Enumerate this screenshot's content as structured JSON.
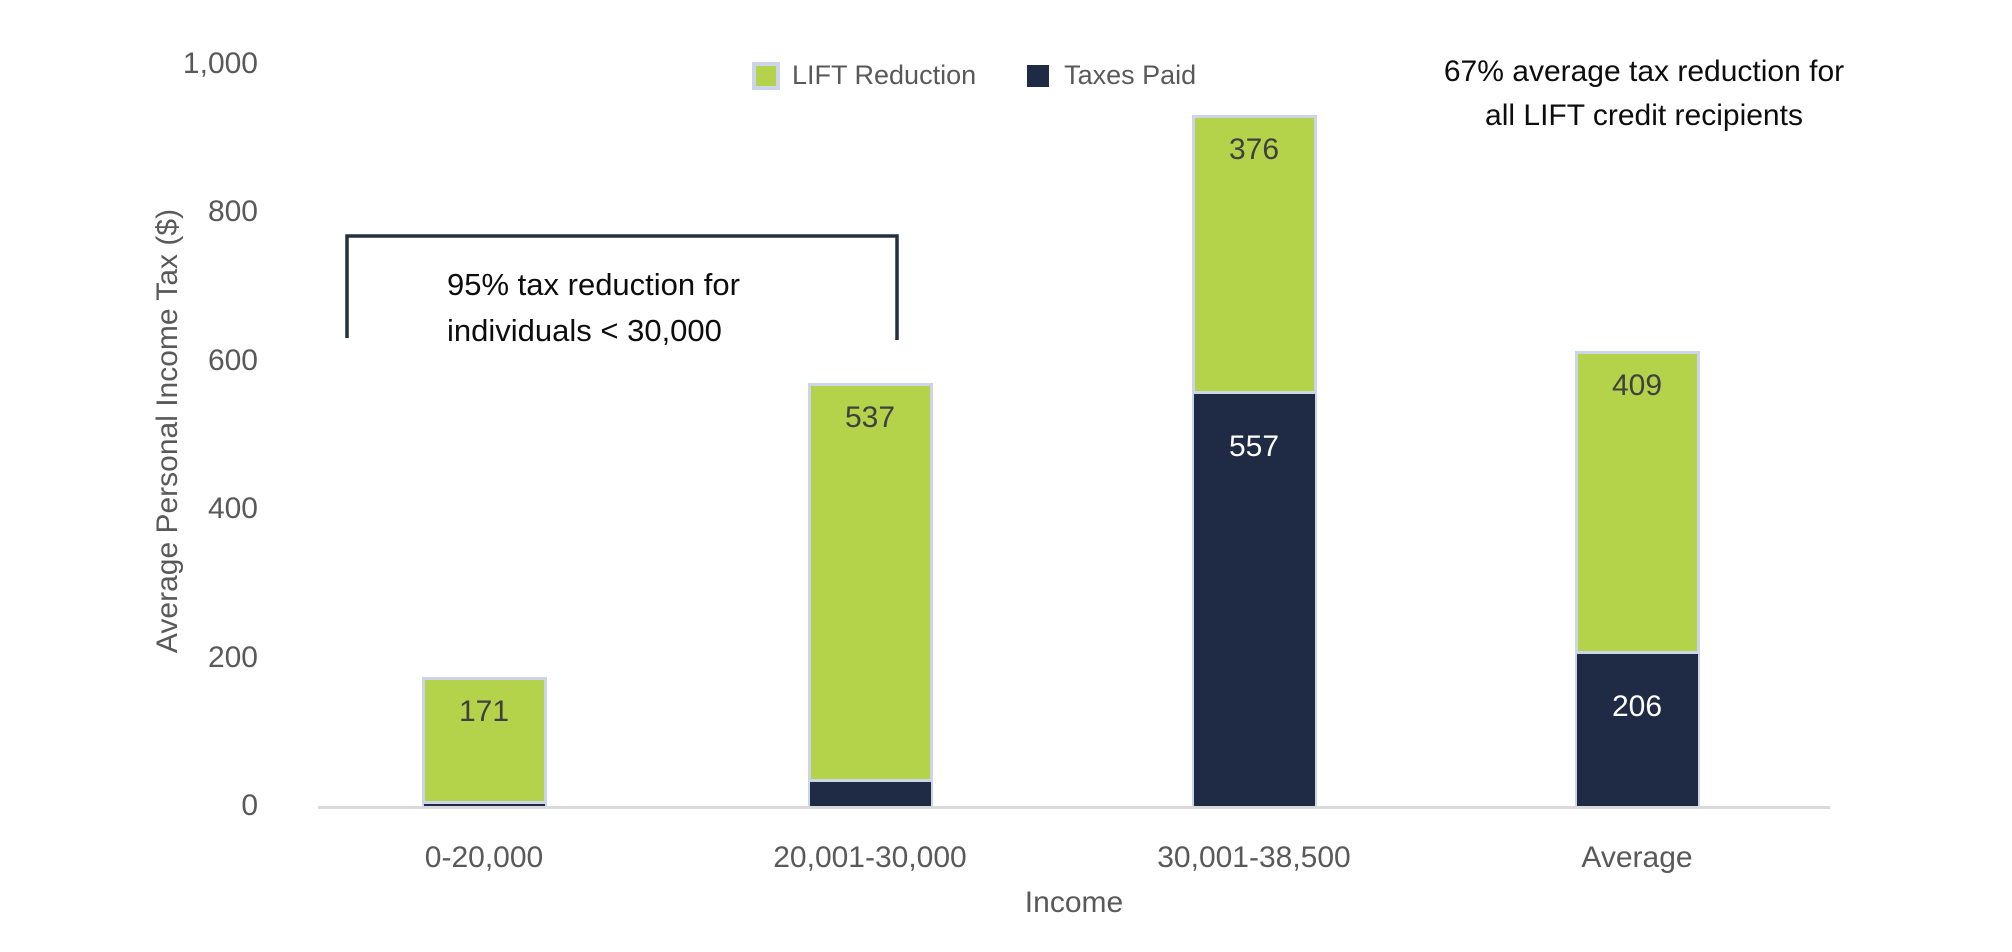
{
  "chart_data": {
    "type": "bar",
    "stacked": true,
    "categories": [
      "0-20,000",
      "20,001-30,000",
      "30,001-38,500",
      "Average"
    ],
    "series": [
      {
        "name": "LIFT Reduction",
        "color": "#b5d24b",
        "label_color": "#404040",
        "values": [
          171,
          537,
          376,
          409
        ]
      },
      {
        "name": "Taxes Paid",
        "color": "#1f2b45",
        "label_color": "#ffffff",
        "values": [
          4,
          34,
          557,
          206
        ]
      }
    ],
    "stack_order_bottom_to_top": [
      "Taxes Paid",
      "LIFT Reduction"
    ],
    "xlabel": "Income",
    "ylabel": "Average Personal Income Tax ($)",
    "ylim": [
      0,
      1000
    ],
    "yticks": [
      {
        "value": 0,
        "label": "0"
      },
      {
        "value": 200,
        "label": "200"
      },
      {
        "value": 400,
        "label": "400"
      },
      {
        "value": 600,
        "label": "600"
      },
      {
        "value": 800,
        "label": "800"
      },
      {
        "value": 1000,
        "label": "1,000"
      }
    ],
    "grid": false,
    "legend_position": "top-center",
    "annotations": [
      {
        "id": "bracket-note",
        "lines": [
          "95% tax reduction for",
          "individuals < 30,000"
        ]
      },
      {
        "id": "average-note",
        "lines": [
          "67% average tax reduction for",
          "all LIFT credit recipients"
        ]
      }
    ],
    "colors": {
      "bar_border": "#cbd4e8",
      "axis_line": "#d9d9d9",
      "axis_text": "#595959",
      "annotation_text": "#0d0d0d",
      "bracket": "#24303f",
      "background": "#ffffff"
    }
  }
}
